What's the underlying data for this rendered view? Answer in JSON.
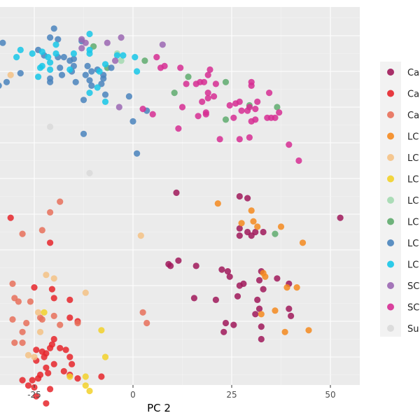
{
  "chart_data": {
    "type": "scatter",
    "title": "",
    "xlabel": "PC 2",
    "ylabel": "",
    "xlim": [
      -33,
      57
    ],
    "ylim": [
      -68,
      52
    ],
    "x_ticks": [
      -25,
      0,
      25,
      50
    ],
    "grid": true,
    "legend_position": "right",
    "series": [
      {
        "name": "Ca",
        "color": "#a0195a",
        "points": [
          [
            11,
            6
          ],
          [
            27,
            5
          ],
          [
            29,
            4.5
          ],
          [
            52.5,
            -1
          ],
          [
            27,
            -4
          ],
          [
            29,
            -5
          ],
          [
            31,
            -5
          ],
          [
            33,
            -5
          ],
          [
            27,
            -6
          ],
          [
            30,
            -6
          ],
          [
            11.5,
            -13
          ],
          [
            9.5,
            -14.5
          ],
          [
            9,
            -14
          ],
          [
            16,
            -14.5
          ],
          [
            22.5,
            -15.5
          ],
          [
            24,
            -16
          ],
          [
            24.5,
            -17.5
          ],
          [
            32.5,
            -16
          ],
          [
            36.5,
            -18
          ],
          [
            32,
            -18.5
          ],
          [
            39.5,
            -19.5
          ],
          [
            28,
            -19.5
          ],
          [
            27,
            -20
          ],
          [
            33,
            -21
          ],
          [
            26.5,
            -23
          ],
          [
            15.5,
            -23.5
          ],
          [
            21,
            -24
          ],
          [
            31.5,
            -24
          ],
          [
            32,
            -26.5
          ],
          [
            39.5,
            -26.5
          ],
          [
            40,
            -28.5
          ],
          [
            31,
            -28
          ],
          [
            23.5,
            -30.5
          ],
          [
            25.5,
            -31
          ],
          [
            32.5,
            -31.5
          ],
          [
            23,
            -33
          ],
          [
            32.5,
            -35
          ]
        ]
      },
      {
        "name": "Ca",
        "color": "#e6262c",
        "points": [
          [
            -31,
            -1
          ],
          [
            -21,
            -8
          ],
          [
            -25,
            -20.5
          ],
          [
            -20.5,
            -21
          ],
          [
            -20,
            -23.5
          ],
          [
            -16,
            -24
          ],
          [
            -16,
            -29
          ],
          [
            -14,
            -30
          ],
          [
            -20,
            -35
          ],
          [
            -20.5,
            -36.5
          ],
          [
            -18.5,
            -37.5
          ],
          [
            -21,
            -37.5
          ],
          [
            -23,
            -38.5
          ],
          [
            -22,
            -39
          ],
          [
            -24.5,
            -38
          ],
          [
            -17,
            -38
          ],
          [
            -22.5,
            -40
          ],
          [
            -24.5,
            -41
          ],
          [
            -16,
            -40
          ],
          [
            -20,
            -42
          ],
          [
            -15.5,
            -42
          ],
          [
            -22,
            -43
          ],
          [
            -17.5,
            -44
          ],
          [
            -21.5,
            -44.5
          ],
          [
            -23.5,
            -45
          ],
          [
            -16,
            -45
          ],
          [
            -14,
            -46
          ],
          [
            -8,
            -45.5
          ],
          [
            -24,
            -46
          ],
          [
            -28,
            -46.5
          ],
          [
            -25.5,
            -46.5
          ],
          [
            -26.5,
            -48
          ],
          [
            -25,
            -48.5
          ],
          [
            -21,
            -49
          ],
          [
            -24.5,
            -51
          ],
          [
            -22,
            -53
          ]
        ]
      },
      {
        "name": "Ca",
        "color": "#e8705a",
        "points": [
          [
            -18.5,
            3.5
          ],
          [
            -21,
            0.5
          ],
          [
            -28,
            -5.5
          ],
          [
            -23,
            -4.5
          ],
          [
            -30.5,
            -19.5
          ],
          [
            -30,
            -23.5
          ],
          [
            -29,
            -24.5
          ],
          [
            -26,
            -24.5
          ],
          [
            -30.5,
            -29.5
          ],
          [
            -27,
            -30.5
          ],
          [
            -20,
            -28.5
          ],
          [
            -23,
            -29.5
          ],
          [
            -23.5,
            -29
          ],
          [
            -18.5,
            -31
          ],
          [
            -14,
            -30.5
          ],
          [
            -28,
            -33
          ],
          [
            -30,
            -36
          ],
          [
            -28,
            -36
          ],
          [
            2.5,
            -27.5
          ],
          [
            3.5,
            -30.5
          ]
        ]
      },
      {
        "name": "LC",
        "color": "#f58a1f",
        "points": [
          [
            21.5,
            3
          ],
          [
            30,
            1
          ],
          [
            27.5,
            -2.5
          ],
          [
            30.5,
            -2
          ],
          [
            31.5,
            -3.5
          ],
          [
            37.5,
            -3.5
          ],
          [
            43,
            -8
          ],
          [
            33,
            -16.5
          ],
          [
            33.5,
            -17.5
          ],
          [
            41.5,
            -20.5
          ],
          [
            39,
            -20.5
          ],
          [
            36,
            -27
          ],
          [
            32.5,
            -28
          ],
          [
            38.5,
            -33
          ],
          [
            44.5,
            -32.5
          ]
        ]
      },
      {
        "name": "LC",
        "color": "#f5c285",
        "points": [
          [
            -31,
            39
          ],
          [
            2,
            -6
          ],
          [
            -22,
            -17
          ],
          [
            -20,
            -18
          ],
          [
            -12,
            -22
          ],
          [
            -24,
            -27.5
          ],
          [
            -23.5,
            -33
          ],
          [
            -25,
            -40
          ],
          [
            -26.5,
            -39.5
          ]
        ]
      },
      {
        "name": "LC",
        "color": "#f2d12a",
        "points": [
          [
            -22.5,
            -27.5
          ],
          [
            -8,
            -32.5
          ],
          [
            -7,
            -40
          ],
          [
            -12,
            -45.5
          ],
          [
            -16,
            -45.5
          ],
          [
            -12,
            -48
          ],
          [
            -11,
            -49.5
          ]
        ]
      },
      {
        "name": "LC",
        "color": "#a3d9b0",
        "points": [
          [
            -4,
            45
          ],
          [
            -3,
            43
          ]
        ]
      },
      {
        "name": "LC",
        "color": "#5fab6e",
        "points": [
          [
            3,
            43
          ],
          [
            -6.5,
            41
          ],
          [
            -10,
            47
          ],
          [
            14,
            38.5
          ],
          [
            23.5,
            37
          ],
          [
            10.5,
            34
          ],
          [
            23.5,
            26.5
          ],
          [
            29.5,
            30.5
          ],
          [
            36.5,
            30
          ],
          [
            36,
            -5.5
          ]
        ]
      },
      {
        "name": "LC",
        "color": "#4a84bd",
        "points": [
          [
            -33,
            48
          ],
          [
            -19,
            49
          ],
          [
            -21,
            49.5
          ],
          [
            -20,
            52
          ],
          [
            -13,
            48.5
          ],
          [
            -15,
            43.5
          ],
          [
            -22.5,
            44.5
          ],
          [
            -24,
            46
          ],
          [
            -19,
            44
          ],
          [
            -17.5,
            44
          ],
          [
            -16,
            43
          ],
          [
            -15,
            41.5
          ],
          [
            -11.5,
            41.5
          ],
          [
            -9,
            40.5
          ],
          [
            -7.5,
            39
          ],
          [
            -10.5,
            40
          ],
          [
            -12,
            39
          ],
          [
            -14.5,
            37
          ],
          [
            -18,
            39
          ],
          [
            -21,
            37
          ],
          [
            -32,
            37
          ],
          [
            -34,
            36
          ],
          [
            -28.5,
            39.5
          ],
          [
            -21,
            38
          ],
          [
            -11,
            37.5
          ],
          [
            -7.5,
            38
          ],
          [
            -5.5,
            41
          ],
          [
            -15.5,
            40
          ],
          [
            -18.5,
            41
          ],
          [
            -7,
            33.5
          ],
          [
            -12.5,
            32
          ],
          [
            -8,
            36.5
          ],
          [
            -10.5,
            36
          ],
          [
            -1,
            33
          ],
          [
            0,
            26
          ],
          [
            -12.5,
            22.5
          ],
          [
            3.5,
            29
          ],
          [
            1,
            17
          ]
        ]
      },
      {
        "name": "LC",
        "color": "#17c7e8",
        "points": [
          [
            -28.5,
            46
          ],
          [
            -25.5,
            45
          ],
          [
            -23,
            45.5
          ],
          [
            -19.5,
            47.5
          ],
          [
            -11,
            50.5
          ],
          [
            -11,
            46
          ],
          [
            -11,
            45
          ],
          [
            -19.5,
            45
          ],
          [
            -23,
            41.5
          ],
          [
            -23.5,
            41
          ],
          [
            -21,
            40.5
          ],
          [
            -29.5,
            44
          ],
          [
            -21.5,
            44
          ],
          [
            -16,
            40.5
          ],
          [
            -15,
            45
          ],
          [
            -8.5,
            40
          ],
          [
            -7,
            42
          ],
          [
            -4,
            44.5
          ],
          [
            -2.5,
            44.5
          ],
          [
            0.5,
            44
          ],
          [
            1,
            40
          ],
          [
            -9,
            35.5
          ],
          [
            -11,
            34
          ],
          [
            -24,
            38.5
          ],
          [
            -21,
            42.5
          ],
          [
            -7,
            31.5
          ]
        ]
      },
      {
        "name": "SC",
        "color": "#9b67b3",
        "points": [
          [
            -13,
            49
          ],
          [
            -12,
            48
          ],
          [
            -3,
            49.5
          ],
          [
            -6.5,
            48
          ],
          [
            7.5,
            47.5
          ],
          [
            -13,
            46.5
          ],
          [
            -4.5,
            43
          ],
          [
            -3.5,
            30
          ]
        ]
      },
      {
        "name": "SC",
        "color": "#d62e93",
        "points": [
          [
            6,
            44
          ],
          [
            7,
            41
          ],
          [
            8,
            41.5
          ],
          [
            12,
            41
          ],
          [
            19.5,
            40.5
          ],
          [
            19,
            39
          ],
          [
            18,
            37
          ],
          [
            21,
            36.5
          ],
          [
            16,
            36.5
          ],
          [
            13.5,
            36.5
          ],
          [
            17,
            37
          ],
          [
            19,
            34
          ],
          [
            19,
            32.5
          ],
          [
            20.5,
            33
          ],
          [
            17.5,
            31.5
          ],
          [
            27,
            31.5
          ],
          [
            24.5,
            30.5
          ],
          [
            26,
            31
          ],
          [
            29.5,
            30
          ],
          [
            29,
            29
          ],
          [
            31.5,
            31.5
          ],
          [
            34.5,
            34
          ],
          [
            30,
            36
          ],
          [
            30,
            37
          ],
          [
            27.5,
            29
          ],
          [
            31,
            29.5
          ],
          [
            34,
            27
          ],
          [
            37,
            28.5
          ],
          [
            36,
            27
          ],
          [
            35,
            27
          ],
          [
            30,
            26
          ],
          [
            25.5,
            27
          ],
          [
            18.5,
            28
          ],
          [
            12.5,
            30
          ],
          [
            2.5,
            29.5
          ],
          [
            5,
            28
          ],
          [
            11.5,
            24
          ],
          [
            22,
            21
          ],
          [
            27,
            21
          ],
          [
            29.5,
            21.5
          ],
          [
            39.5,
            19.5
          ],
          [
            42,
            15
          ],
          [
            18.5,
            28.5
          ],
          [
            31,
            26.5
          ],
          [
            16.5,
            27.5
          ]
        ]
      },
      {
        "name": "Su",
        "color": "#d9d9d9",
        "points": [
          [
            -21,
            24.5
          ],
          [
            -11,
            11.5
          ]
        ]
      }
    ]
  },
  "legend": {
    "labels": [
      "Ca",
      "Ca",
      "Ca",
      "LC",
      "LC",
      "LC",
      "LC",
      "LC",
      "LC",
      "LC",
      "SC",
      "SC",
      "Su"
    ]
  }
}
